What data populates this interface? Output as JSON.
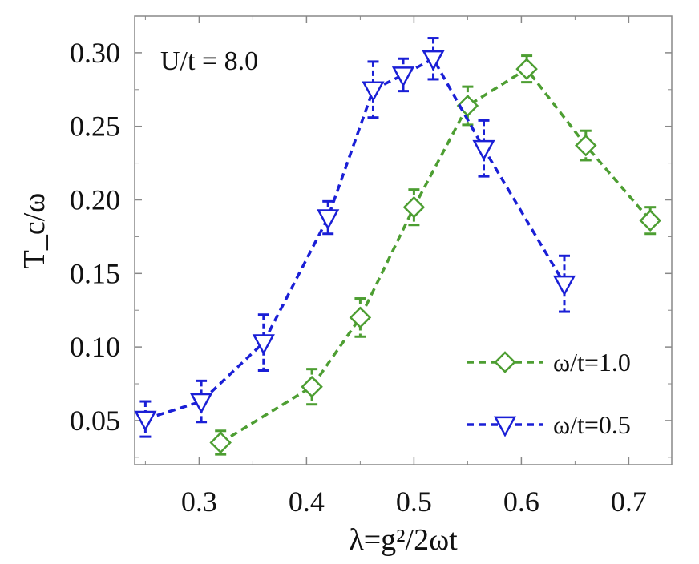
{
  "chart_data": {
    "type": "line",
    "title": "",
    "annotation": "U/t = 8.0",
    "xlabel": "λ=g²/2ωt",
    "ylabel": "T_c/ω",
    "xlim": [
      0.24,
      0.74
    ],
    "ylim": [
      0.02,
      0.325
    ],
    "xticks": [
      0.3,
      0.4,
      0.5,
      0.6,
      0.7
    ],
    "xtick_labels": [
      "0.3",
      "0.4",
      "0.5",
      "0.6",
      "0.7"
    ],
    "yticks": [
      0.05,
      0.1,
      0.15,
      0.2,
      0.25,
      0.3
    ],
    "ytick_labels": [
      "0.05",
      "0.10",
      "0.15",
      "0.20",
      "0.25",
      "0.30"
    ],
    "grid": false,
    "legend_position": "bottom-right",
    "series": [
      {
        "name": "ω/t=1.0",
        "color": "#4d9e32",
        "marker": "diamond",
        "line_style": "dashed",
        "x": [
          0.32,
          0.405,
          0.45,
          0.5,
          0.55,
          0.605,
          0.66,
          0.72
        ],
        "y": [
          0.035,
          0.073,
          0.12,
          0.195,
          0.264,
          0.289,
          0.237,
          0.186
        ],
        "err": [
          0.008,
          0.012,
          0.013,
          0.012,
          0.013,
          0.009,
          0.01,
          0.009
        ]
      },
      {
        "name": "ω/t=0.5",
        "color": "#1a1fd6",
        "marker": "triangle-down",
        "line_style": "dashed",
        "x": [
          0.25,
          0.302,
          0.36,
          0.42,
          0.462,
          0.49,
          0.518,
          0.565,
          0.64
        ],
        "y": [
          0.051,
          0.063,
          0.103,
          0.188,
          0.275,
          0.285,
          0.296,
          0.235,
          0.143
        ],
        "err": [
          0.012,
          0.014,
          0.019,
          0.011,
          0.019,
          0.011,
          0.014,
          0.019,
          0.019
        ]
      }
    ]
  }
}
